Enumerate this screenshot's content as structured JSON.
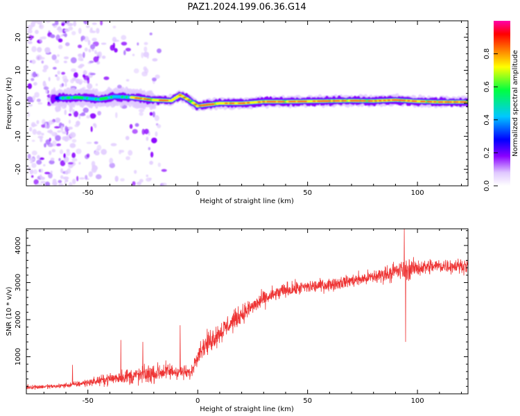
{
  "title": "PAZ1.2024.199.06.36.G14",
  "chart_data": [
    {
      "type": "heatmap",
      "xlabel": "Height of straight line (km)",
      "ylabel": "Frequency (Hz)",
      "xlim": [
        -78,
        123
      ],
      "ylim": [
        -25,
        25
      ],
      "xticks": [
        -50,
        0,
        50,
        100
      ],
      "xtick_labels": [
        "-50",
        "0",
        "50",
        "100"
      ],
      "yticks": [
        -20,
        -10,
        0,
        10,
        20
      ],
      "ytick_labels": [
        "-20",
        "-10",
        "0",
        "10",
        "20"
      ],
      "grid": false,
      "colorbar": {
        "label": "Normalized spectral amplitude",
        "ticks": [
          0.0,
          0.2,
          0.4,
          0.6,
          0.8
        ],
        "tick_labels": [
          "0.0",
          "0.2",
          "0.4",
          "0.6",
          "0.8"
        ],
        "range": [
          0,
          1
        ],
        "colormap": [
          "#ffffff",
          "#e0c8ff",
          "#8a00ff",
          "#0000ff",
          "#00c8ff",
          "#00ff40",
          "#ffff00",
          "#ff8000",
          "#ff0000",
          "#ff00aa"
        ]
      },
      "band_centerline": {
        "x": [
          -65,
          -55,
          -45,
          -38,
          -30,
          -20,
          -12,
          -8,
          -4,
          0,
          5,
          10,
          20,
          30,
          40,
          50,
          60,
          70,
          80,
          90,
          100,
          110,
          123
        ],
        "y": [
          1.5,
          1.8,
          1.2,
          2.0,
          1.8,
          1.0,
          0.8,
          2.5,
          1.0,
          -0.8,
          -0.4,
          0.0,
          0.0,
          0.5,
          0.5,
          0.6,
          0.7,
          0.8,
          0.7,
          1.0,
          0.6,
          0.4,
          0.4
        ]
      }
    },
    {
      "type": "line",
      "xlabel": "Height of straight line (km)",
      "ylabel": "SNR (10 * v/v)",
      "xlim": [
        -78,
        123
      ],
      "ylim": [
        0,
        4450
      ],
      "xticks": [
        -50,
        0,
        50,
        100
      ],
      "xtick_labels": [
        "-50",
        "0",
        "50",
        "100"
      ],
      "yticks": [
        1000,
        2000,
        3000,
        4000
      ],
      "ytick_labels": [
        "1000",
        "2000",
        "3000",
        "4000"
      ],
      "grid": false,
      "series": [
        {
          "color": "#ee3333",
          "trend_x": [
            -78,
            -65,
            -55,
            -45,
            -35,
            -25,
            -15,
            -8,
            -3,
            0,
            5,
            10,
            20,
            30,
            40,
            50,
            60,
            70,
            80,
            90,
            95,
            100,
            110,
            123
          ],
          "trend_y": [
            180,
            200,
            260,
            350,
            450,
            500,
            600,
            600,
            550,
            1100,
            1400,
            1650,
            2150,
            2550,
            2800,
            2880,
            2950,
            3050,
            3150,
            3300,
            3350,
            3400,
            3450,
            3450
          ],
          "noise_amplitude": [
            60,
            60,
            80,
            120,
            200,
            250,
            250,
            200,
            150,
            250,
            300,
            300,
            250,
            220,
            200,
            180,
            170,
            170,
            200,
            250,
            300,
            220,
            200,
            180
          ],
          "spikes": [
            {
              "x": -57,
              "y": 780
            },
            {
              "x": -35,
              "y": 1450
            },
            {
              "x": -25,
              "y": 1400
            },
            {
              "x": -8,
              "y": 1850
            },
            {
              "x": 94,
              "y": 4450
            },
            {
              "x": 94.6,
              "y": 1400
            }
          ]
        }
      ]
    }
  ]
}
